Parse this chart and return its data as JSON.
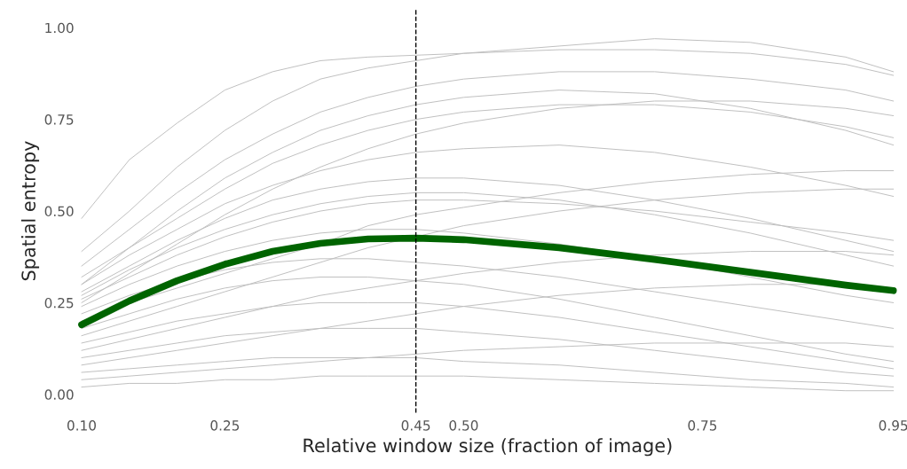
{
  "chart_data": {
    "type": "line",
    "xlabel": "Relative window size (fraction of image)",
    "ylabel": "Spatial entropy",
    "x": [
      0.1,
      0.15,
      0.2,
      0.25,
      0.3,
      0.35,
      0.4,
      0.45,
      0.5,
      0.6,
      0.7,
      0.8,
      0.9,
      0.95
    ],
    "xlim": [
      0.1,
      0.95
    ],
    "ylim": [
      -0.05,
      1.05
    ],
    "xticks": [
      {
        "value": 0.1,
        "label": "0.10"
      },
      {
        "value": 0.25,
        "label": "0.25"
      },
      {
        "value": 0.45,
        "label": "0.45"
      },
      {
        "value": 0.5,
        "label": "0.50"
      },
      {
        "value": 0.75,
        "label": "0.75"
      },
      {
        "value": 0.95,
        "label": "0.95"
      }
    ],
    "yticks": [
      {
        "value": 0,
        "label": "0.00"
      },
      {
        "value": 0.25,
        "label": "0.25"
      },
      {
        "value": 0.5,
        "label": "0.50"
      },
      {
        "value": 0.75,
        "label": "0.75"
      },
      {
        "value": 1,
        "label": "1.00"
      }
    ],
    "grid": false,
    "legend": false,
    "ref_lines": [
      {
        "axis": "x",
        "value": 0.45,
        "color": "#000000",
        "line_style": "dashed"
      }
    ],
    "series": [
      {
        "color": "#bebebe",
        "values": [
          0.48,
          0.64,
          0.74,
          0.83,
          0.88,
          0.91,
          0.92,
          0.925,
          0.93,
          0.94,
          0.94,
          0.93,
          0.9,
          0.87
        ]
      },
      {
        "color": "#bebebe",
        "values": [
          0.39,
          0.5,
          0.62,
          0.72,
          0.8,
          0.86,
          0.89,
          0.91,
          0.93,
          0.95,
          0.97,
          0.96,
          0.92,
          0.88
        ]
      },
      {
        "color": "#bebebe",
        "values": [
          0.35,
          0.45,
          0.55,
          0.64,
          0.71,
          0.77,
          0.81,
          0.84,
          0.86,
          0.88,
          0.88,
          0.86,
          0.83,
          0.8
        ]
      },
      {
        "color": "#bebebe",
        "values": [
          0.32,
          0.4,
          0.48,
          0.56,
          0.63,
          0.68,
          0.72,
          0.75,
          0.77,
          0.79,
          0.79,
          0.77,
          0.73,
          0.7
        ]
      },
      {
        "color": "#bebebe",
        "values": [
          0.3,
          0.38,
          0.45,
          0.52,
          0.57,
          0.61,
          0.64,
          0.66,
          0.67,
          0.68,
          0.66,
          0.62,
          0.57,
          0.54
        ]
      },
      {
        "color": "#bebebe",
        "values": [
          0.28,
          0.35,
          0.42,
          0.48,
          0.53,
          0.56,
          0.58,
          0.59,
          0.59,
          0.57,
          0.53,
          0.48,
          0.42,
          0.39
        ]
      },
      {
        "color": "#bebebe",
        "values": [
          0.26,
          0.32,
          0.38,
          0.43,
          0.47,
          0.5,
          0.52,
          0.53,
          0.53,
          0.52,
          0.5,
          0.47,
          0.44,
          0.42
        ]
      },
      {
        "color": "#bebebe",
        "values": [
          0.24,
          0.3,
          0.35,
          0.39,
          0.42,
          0.44,
          0.45,
          0.45,
          0.44,
          0.41,
          0.37,
          0.32,
          0.27,
          0.25
        ]
      },
      {
        "color": "#bebebe",
        "values": [
          0.22,
          0.27,
          0.31,
          0.34,
          0.36,
          0.37,
          0.37,
          0.36,
          0.35,
          0.32,
          0.28,
          0.24,
          0.2,
          0.18
        ]
      },
      {
        "color": "#bebebe",
        "values": [
          0.2,
          0.25,
          0.29,
          0.33,
          0.37,
          0.41,
          0.46,
          0.49,
          0.51,
          0.55,
          0.58,
          0.6,
          0.61,
          0.61
        ]
      },
      {
        "color": "#bebebe",
        "values": [
          0.18,
          0.22,
          0.26,
          0.29,
          0.31,
          0.32,
          0.32,
          0.31,
          0.3,
          0.26,
          0.21,
          0.16,
          0.11,
          0.09
        ]
      },
      {
        "color": "#bebebe",
        "values": [
          0.16,
          0.2,
          0.24,
          0.28,
          0.32,
          0.36,
          0.4,
          0.43,
          0.46,
          0.5,
          0.53,
          0.55,
          0.56,
          0.56
        ]
      },
      {
        "color": "#bebebe",
        "values": [
          0.14,
          0.17,
          0.2,
          0.22,
          0.24,
          0.25,
          0.25,
          0.25,
          0.24,
          0.21,
          0.17,
          0.13,
          0.09,
          0.07
        ]
      },
      {
        "color": "#bebebe",
        "values": [
          0.12,
          0.15,
          0.18,
          0.21,
          0.24,
          0.27,
          0.29,
          0.31,
          0.33,
          0.36,
          0.38,
          0.39,
          0.39,
          0.38
        ]
      },
      {
        "color": "#bebebe",
        "values": [
          0.1,
          0.12,
          0.14,
          0.16,
          0.17,
          0.18,
          0.18,
          0.18,
          0.17,
          0.15,
          0.12,
          0.09,
          0.06,
          0.05
        ]
      },
      {
        "color": "#bebebe",
        "values": [
          0.08,
          0.1,
          0.12,
          0.14,
          0.16,
          0.18,
          0.2,
          0.22,
          0.24,
          0.27,
          0.29,
          0.3,
          0.3,
          0.29
        ]
      },
      {
        "color": "#bebebe",
        "values": [
          0.06,
          0.07,
          0.08,
          0.09,
          0.1,
          0.1,
          0.1,
          0.1,
          0.09,
          0.08,
          0.06,
          0.04,
          0.03,
          0.02
        ]
      },
      {
        "color": "#bebebe",
        "values": [
          0.04,
          0.05,
          0.06,
          0.07,
          0.08,
          0.09,
          0.1,
          0.11,
          0.12,
          0.13,
          0.14,
          0.14,
          0.14,
          0.13
        ]
      },
      {
        "color": "#bebebe",
        "values": [
          0.02,
          0.03,
          0.03,
          0.04,
          0.04,
          0.05,
          0.05,
          0.05,
          0.05,
          0.04,
          0.03,
          0.02,
          0.01,
          0.01
        ]
      },
      {
        "color": "#bebebe",
        "values": [
          0.3,
          0.4,
          0.5,
          0.59,
          0.66,
          0.72,
          0.76,
          0.79,
          0.81,
          0.83,
          0.82,
          0.78,
          0.72,
          0.68
        ]
      },
      {
        "color": "#bebebe",
        "values": [
          0.25,
          0.33,
          0.41,
          0.49,
          0.56,
          0.62,
          0.67,
          0.71,
          0.74,
          0.78,
          0.8,
          0.8,
          0.78,
          0.76
        ]
      },
      {
        "color": "#bebebe",
        "values": [
          0.27,
          0.34,
          0.4,
          0.45,
          0.49,
          0.52,
          0.54,
          0.55,
          0.55,
          0.53,
          0.49,
          0.44,
          0.38,
          0.35
        ]
      },
      {
        "color": "#006400",
        "values": [
          0.19,
          0.255,
          0.31,
          0.355,
          0.39,
          0.412,
          0.424,
          0.426,
          0.422,
          0.4,
          0.368,
          0.333,
          0.298,
          0.283
        ]
      }
    ]
  }
}
